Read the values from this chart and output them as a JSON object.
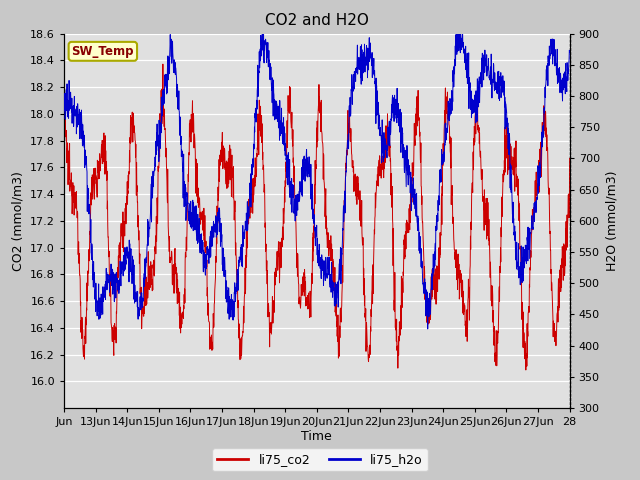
{
  "title": "CO2 and H2O",
  "xlabel": "Time",
  "ylabel_left": "CO2 (mmol/m3)",
  "ylabel_right": "H2O (mmol/m3)",
  "ylim_left": [
    15.8,
    18.6
  ],
  "ylim_right": [
    300,
    900
  ],
  "yticks_left": [
    16.0,
    16.2,
    16.4,
    16.6,
    16.8,
    17.0,
    17.2,
    17.4,
    17.6,
    17.8,
    18.0,
    18.2,
    18.4,
    18.6
  ],
  "yticks_right": [
    300,
    350,
    400,
    450,
    500,
    550,
    600,
    650,
    700,
    750,
    800,
    850,
    900
  ],
  "xtick_labels": [
    "Jun",
    "13Jun",
    "14Jun",
    "15Jun",
    "16Jun",
    "17Jun",
    "18Jun",
    "19Jun",
    "20Jun",
    "21Jun",
    "22Jun",
    "23Jun",
    "24Jun",
    "25Jun",
    "26Jun",
    "27Jun",
    "28"
  ],
  "color_co2": "#cc0000",
  "color_h2o": "#0000cc",
  "legend_labels": [
    "li75_co2",
    "li75_h2o"
  ],
  "label_box_text": "SW_Temp",
  "label_box_facecolor": "#ffffcc",
  "label_box_edgecolor": "#aaaa00",
  "label_box_textcolor": "#880000",
  "fig_facecolor": "#c8c8c8",
  "plot_facecolor": "#e0e0e0",
  "grid_color": "#ffffff",
  "title_fontsize": 11,
  "axis_label_fontsize": 9,
  "tick_fontsize": 8
}
